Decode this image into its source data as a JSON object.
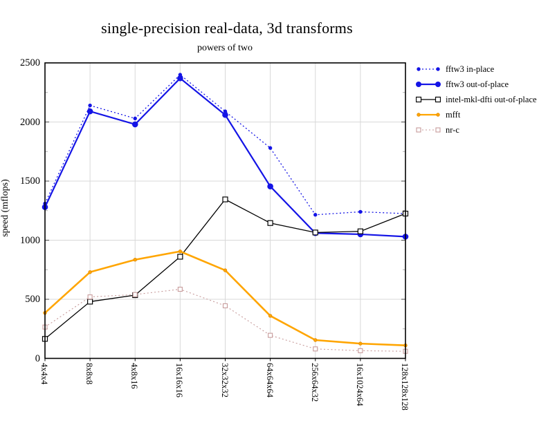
{
  "page": {
    "background": "#ffffff"
  },
  "chart_data": {
    "type": "line",
    "title": "single-precision real-data, 3d transforms",
    "subtitle": "powers of two",
    "ylabel": "speed (mflops)",
    "xlabel": "",
    "ylim": [
      0,
      2500
    ],
    "yticks": [
      0,
      500,
      1000,
      1500,
      2000,
      2500
    ],
    "y_minor_step": 250,
    "grid": true,
    "legend_position": "right",
    "categories": [
      "4x4x4",
      "8x8x8",
      "4x8x16",
      "16x16x16",
      "32x32x32",
      "64x64x64",
      "256x64x32",
      "16x1024x64",
      "128x128x128"
    ],
    "series": [
      {
        "name": "fftw3 in-place",
        "color": "#1414e6",
        "line": "dotted",
        "line_width": 1.3,
        "marker": "circle-small",
        "values": [
          1310,
          2140,
          2030,
          2400,
          2090,
          1780,
          1215,
          1240,
          1225
        ]
      },
      {
        "name": "fftw3 out-of-place",
        "color": "#1414e6",
        "line": "solid",
        "line_width": 2.2,
        "marker": "circle-large",
        "values": [
          1280,
          2090,
          1980,
          2370,
          2060,
          1455,
          1060,
          1050,
          1030
        ]
      },
      {
        "name": "intel-mkl-dfti out-of-place",
        "color": "#000000",
        "line": "solid",
        "line_width": 1.3,
        "marker": "square-open",
        "values": [
          165,
          480,
          535,
          860,
          1345,
          1145,
          1065,
          1075,
          1225
        ]
      },
      {
        "name": "mfft",
        "color": "#ffa500",
        "line": "solid",
        "line_width": 2.6,
        "marker": "dot",
        "values": [
          385,
          730,
          835,
          905,
          745,
          360,
          155,
          125,
          110
        ]
      },
      {
        "name": "nr-c",
        "color": "#c79a9a",
        "line": "dotted",
        "line_width": 1.1,
        "marker": "square-open-small",
        "values": [
          265,
          520,
          540,
          585,
          445,
          195,
          80,
          65,
          60
        ]
      }
    ]
  }
}
